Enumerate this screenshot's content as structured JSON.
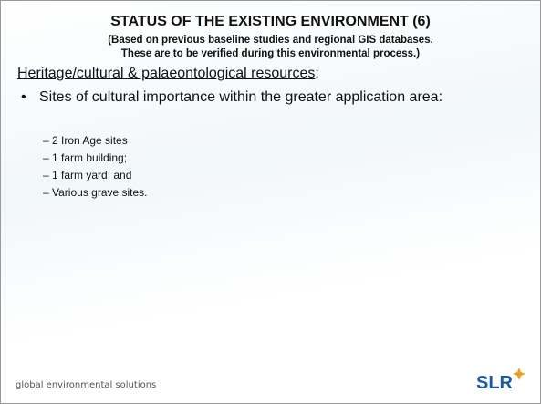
{
  "header": {
    "title": "STATUS OF THE EXISTING ENVIRONMENT (6)",
    "subtitle_line1": "(Based on previous baseline studies and regional GIS databases.",
    "subtitle_line2": "These are to be verified during this environmental process.)"
  },
  "section": {
    "heading": "Heritage/cultural & palaeontological resources",
    "heading_suffix": ":",
    "bullet": "Sites of cultural importance within the greater application area:",
    "items": [
      "2 Iron Age sites",
      "1 farm building;",
      "1 farm yard; and",
      "Various grave sites."
    ]
  },
  "footer": {
    "tagline": "global environmental solutions",
    "logo": "SLR"
  }
}
